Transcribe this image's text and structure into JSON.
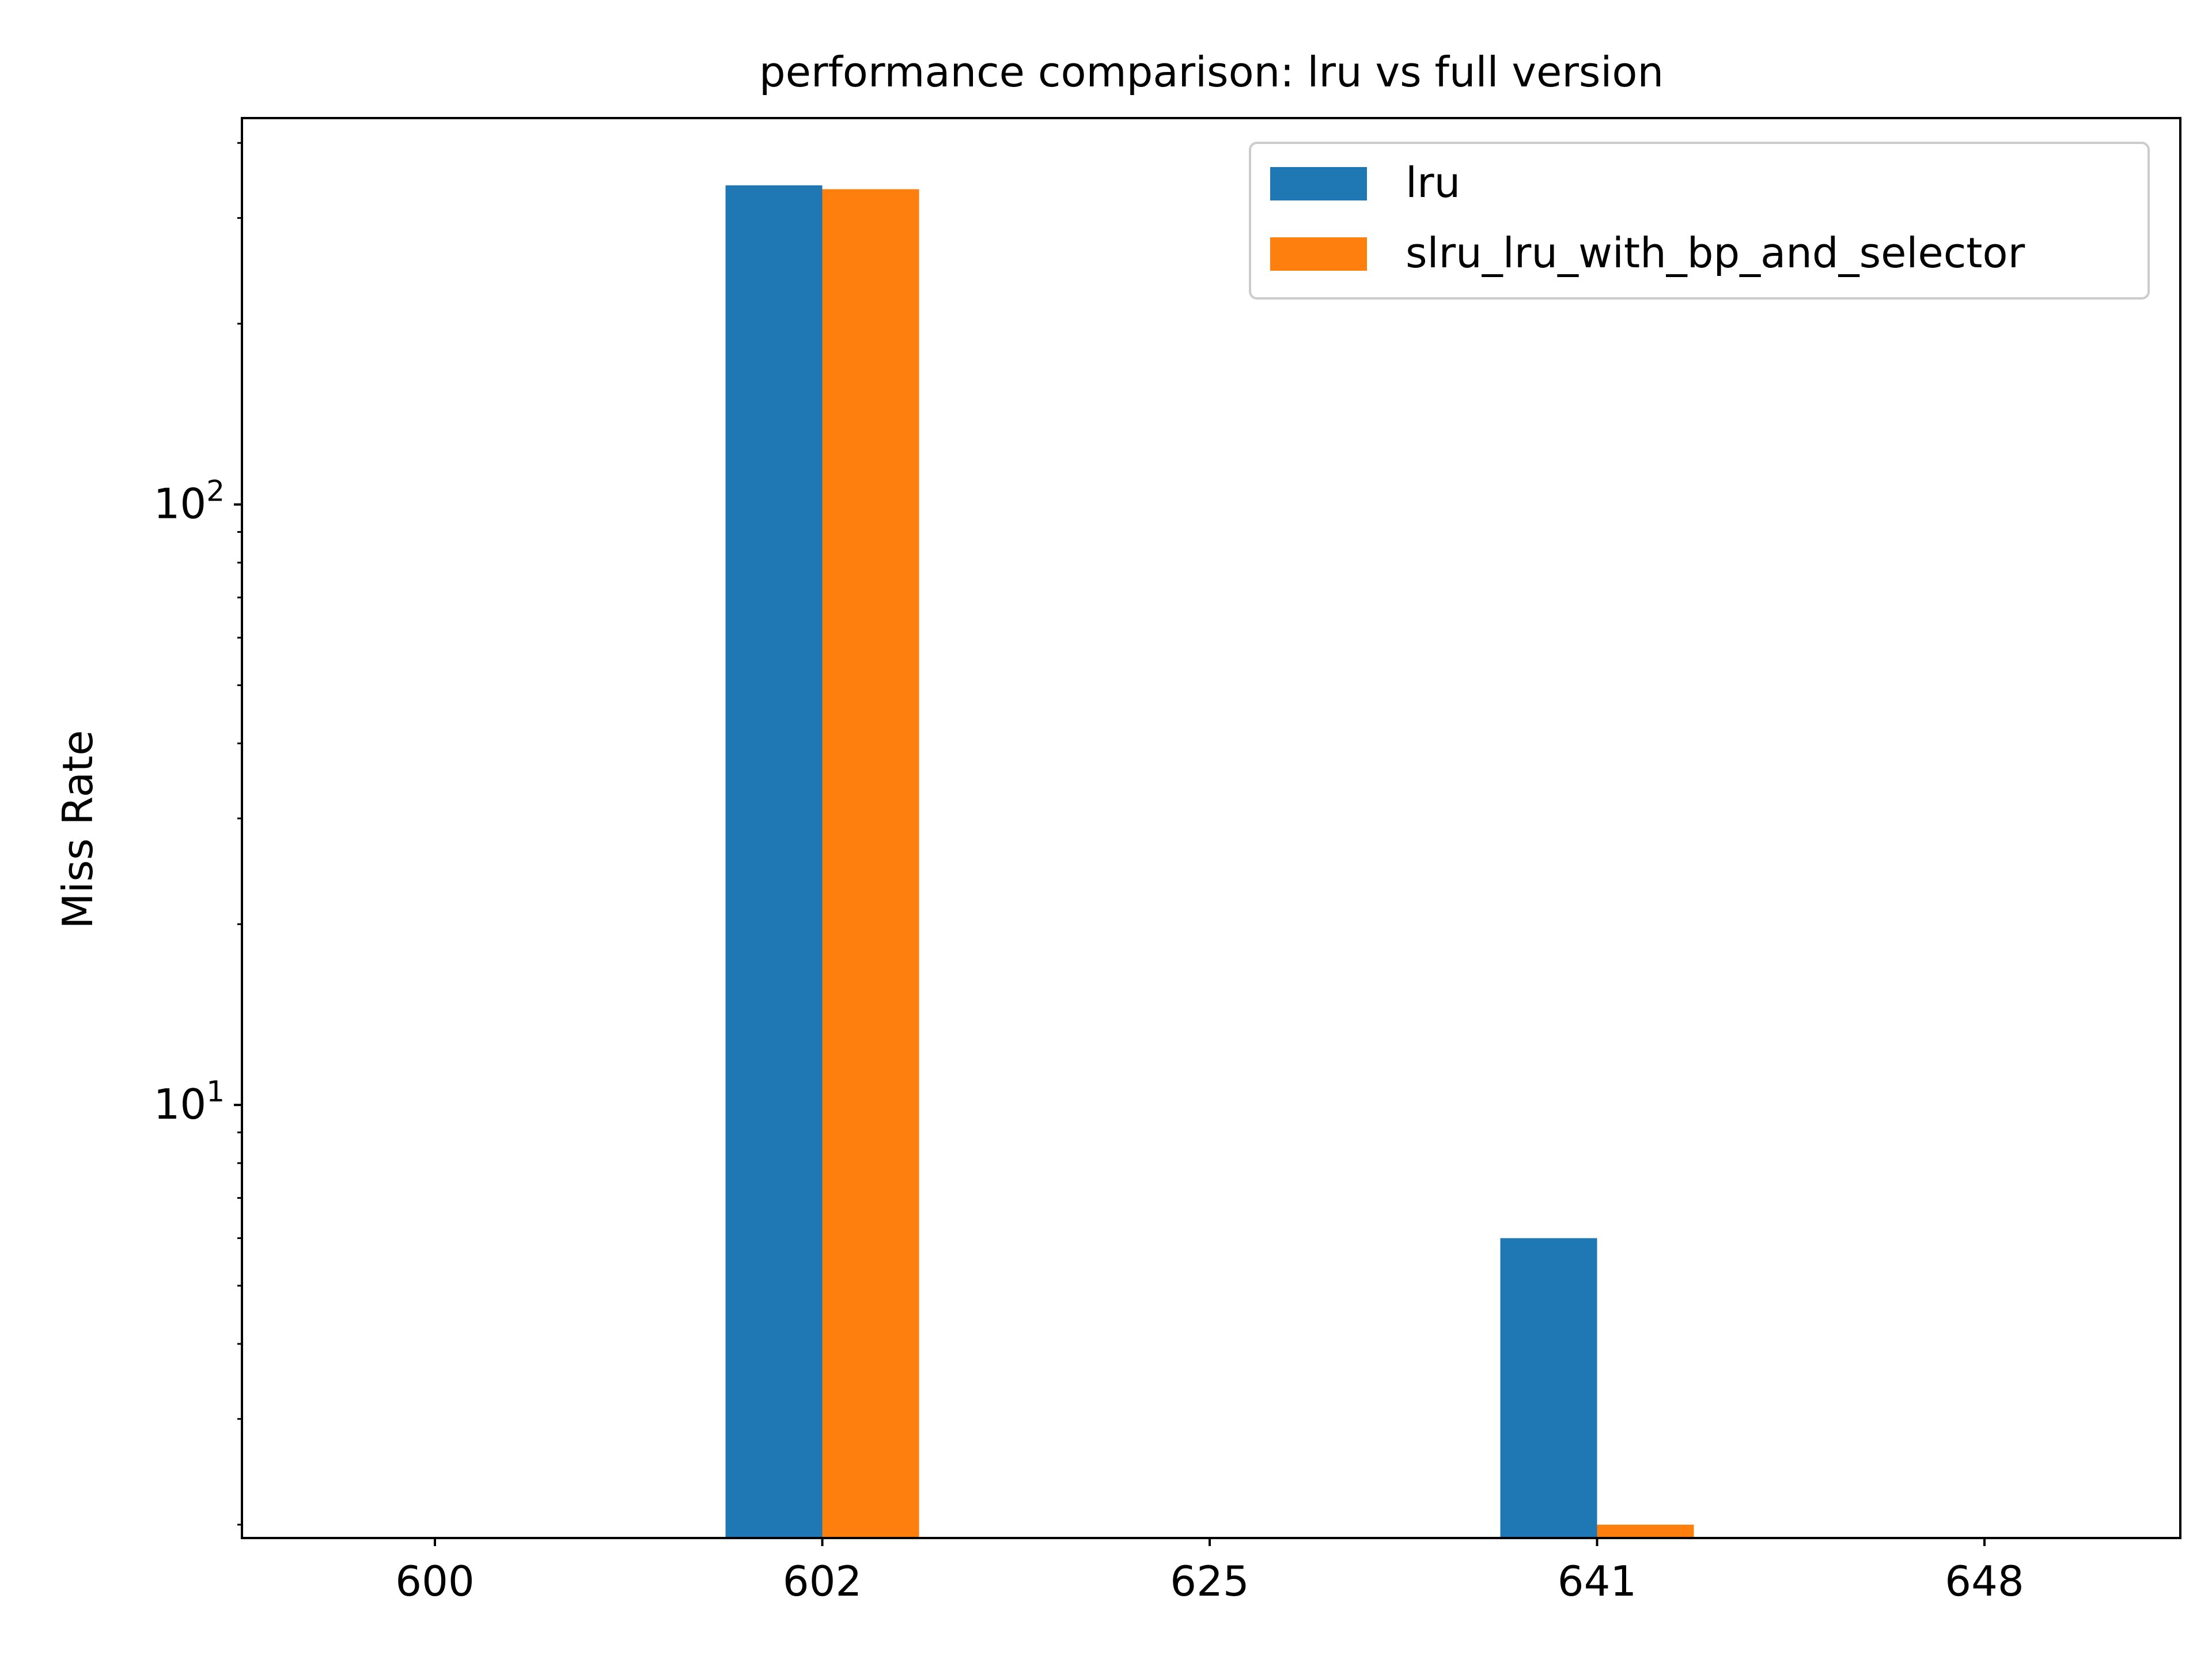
{
  "chart_data": {
    "type": "bar",
    "title": "performance comparison: lru vs full version",
    "xlabel": "",
    "ylabel": "Miss Rate",
    "yscale": "log",
    "ylim": [
      1.9,
      440
    ],
    "categories": [
      "600",
      "602",
      "625",
      "641",
      "648"
    ],
    "series": [
      {
        "name": "lru",
        "color": "#1f77b4",
        "values": [
          null,
          340,
          null,
          6.0,
          null
        ]
      },
      {
        "name": "slru_lru_with_bp_and_selector",
        "color": "#ff7f0e",
        "values": [
          null,
          335,
          null,
          2.0,
          null
        ]
      }
    ],
    "y_ticks": [
      {
        "value": 10,
        "label": "10^1"
      },
      {
        "value": 100,
        "label": "10^2"
      }
    ],
    "legend_position": "top-right",
    "grid": false
  }
}
